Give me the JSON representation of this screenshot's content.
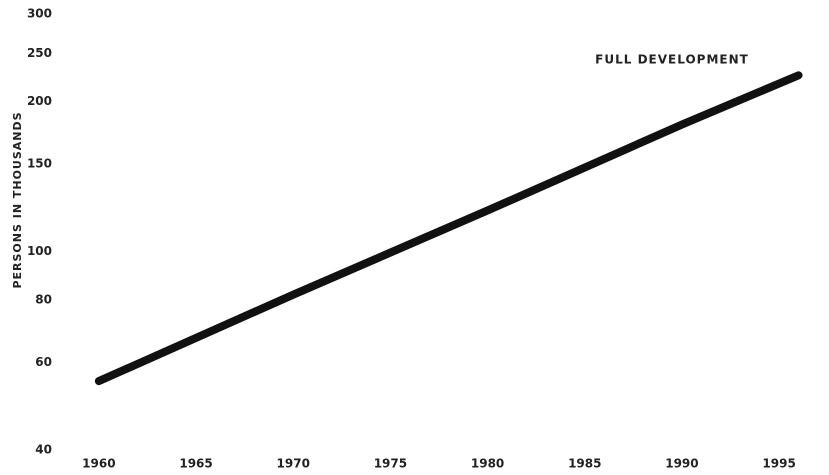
{
  "chart_data": {
    "type": "line",
    "y_label": "PERSONS IN THOUSANDS",
    "annotation": "FULL DEVELOPMENT",
    "x": [
      1960,
      1970,
      1980,
      1990,
      1996
    ],
    "series": [
      {
        "name": "FULL DEVELOPMENT",
        "color": "#111111",
        "values": [
          55,
          82,
          121,
          180,
          226
        ]
      }
    ],
    "xlim": [
      1958,
      1997
    ],
    "xticks": [
      1960,
      1965,
      1970,
      1975,
      1980,
      1985,
      1990,
      1995
    ],
    "ylim": [
      40,
      300
    ],
    "yticks": [
      40,
      60,
      80,
      100,
      150,
      200,
      250,
      300
    ],
    "log_y": true,
    "grid": false
  }
}
